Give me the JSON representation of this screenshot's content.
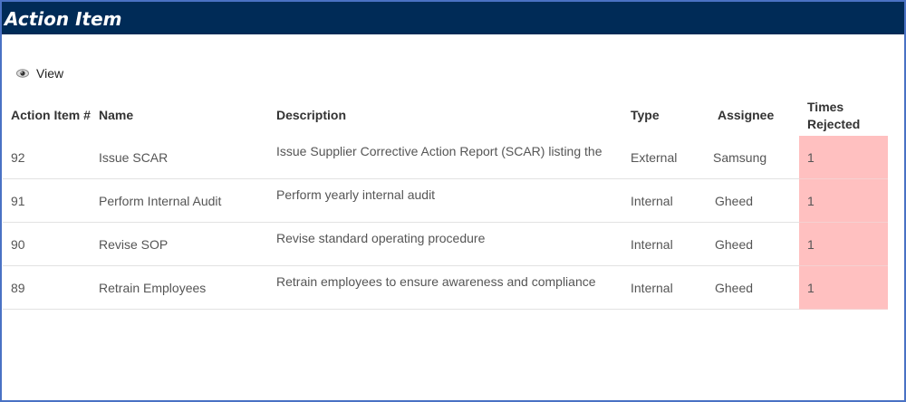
{
  "window": {
    "title": "Action Item"
  },
  "toolbar": {
    "view_label": "View",
    "view_icon": "eye-icon"
  },
  "table": {
    "headers": [
      "Action Item #",
      "Name",
      "Description",
      "Type",
      "Assignee",
      "Times Rejected"
    ],
    "rows": [
      [
        "92",
        "Issue SCAR",
        "Issue Supplier Corrective Action Report (SCAR) listing the",
        "External",
        "Samsung",
        "1"
      ],
      [
        "91",
        "Perform Internal Audit",
        "Perform yearly internal audit",
        "Internal",
        "Gheed",
        "1"
      ],
      [
        "90",
        "Revise SOP",
        "Revise standard operating procedure",
        "Internal",
        "Gheed",
        "1"
      ],
      [
        "89",
        "Retrain Employees",
        "Retrain employees to ensure awareness and compliance",
        "Internal",
        "Gheed",
        "1"
      ]
    ]
  },
  "colors": {
    "header_bg": "#002b57",
    "rejected_highlight": "#ffc0c0",
    "frame_border": "#4a72c4"
  }
}
